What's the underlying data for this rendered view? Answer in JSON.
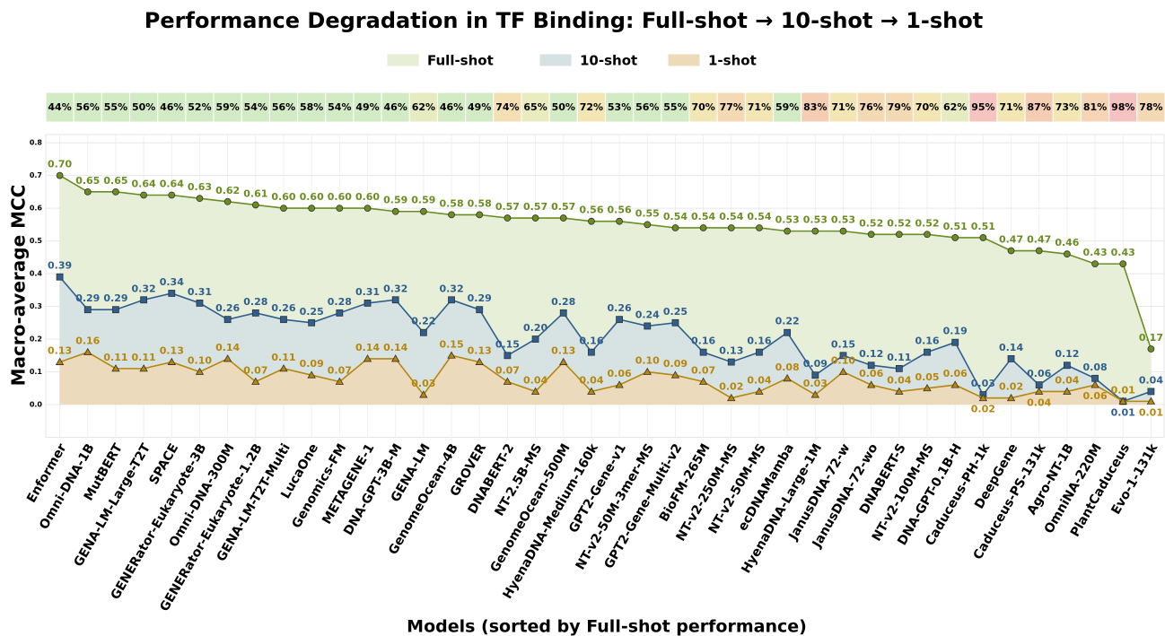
{
  "chart_data": {
    "type": "line",
    "title": "Performance Degradation in TF Binding: Full-shot → 10-shot → 1-shot",
    "x_label": "Models (sorted by Full-shot performance)",
    "y_label": "Macro-average MCC",
    "categories": [
      "Enformer",
      "Omni-DNA-1B",
      "MutBERT",
      "GENA-LM-Large-T2T",
      "SPACE",
      "GENERator-Eukaryote-3B",
      "Omni-DNA-300M",
      "GENERator-Eukaryote-1.2B",
      "GENA-LM-T2T-Multi",
      "LucaOne",
      "Genomics-FM",
      "METAGENE-1",
      "DNA-GPT-3B-M",
      "GENA-LM",
      "GenomeOcean-4B",
      "GROVER",
      "DNABERT-2",
      "NT-2.5B-MS",
      "GenomeOcean-500M",
      "HyenaDNA-Medium-160k",
      "GPT2-Gene-v1",
      "NT-v2-50M-3mer-MS",
      "GPT2-Gene-Multi-v2",
      "BioFM-265M",
      "NT-v2-250M-MS",
      "NT-v2-50M-MS",
      "ecDNAMamba",
      "HyenaDNA-Large-1M",
      "JanusDNA-72-w",
      "JanusDNA-72-wo",
      "DNABERT-S",
      "NT-v2-100M-MS",
      "DNA-GPT-0.1B-H",
      "Caduceus-PH-1k",
      "DeepGene",
      "Caduceus-PS-131k",
      "Agro-NT-1B",
      "OmniNA-220M",
      "PlantCaduceus",
      "Evo-1-131k"
    ],
    "series": [
      {
        "name": "Full-shot",
        "color": "#6b8e23",
        "fill": "#e6eed6",
        "marker": "circle",
        "values": [
          0.7,
          0.65,
          0.65,
          0.64,
          0.64,
          0.63,
          0.62,
          0.61,
          0.6,
          0.6,
          0.6,
          0.6,
          0.59,
          0.59,
          0.58,
          0.58,
          0.57,
          0.57,
          0.57,
          0.56,
          0.56,
          0.55,
          0.54,
          0.54,
          0.54,
          0.54,
          0.53,
          0.53,
          0.53,
          0.52,
          0.52,
          0.52,
          0.51,
          0.51,
          0.47,
          0.47,
          0.46,
          0.43,
          0.43,
          0.17
        ],
        "value_labels": [
          "0.70",
          "0.65",
          "0.65",
          "0.64",
          "0.64",
          "0.63",
          "0.62",
          "0.61",
          "0.60",
          "0.60",
          "0.60",
          "0.60",
          "0.59",
          "0.59",
          "0.58",
          "0.58",
          "0.57",
          "0.57",
          "0.57",
          "0.56",
          "0.56",
          "0.55",
          "0.54",
          "0.54",
          "0.54",
          "0.54",
          "0.53",
          "0.53",
          "0.53",
          "0.52",
          "0.52",
          "0.52",
          "0.51",
          "0.51",
          "0.47",
          "0.47",
          "0.46",
          "0.43",
          "0.43",
          "0.17"
        ]
      },
      {
        "name": "10-shot",
        "color": "#2f5f8f",
        "fill": "#d5e1e3",
        "marker": "square",
        "values": [
          0.39,
          0.29,
          0.29,
          0.32,
          0.34,
          0.31,
          0.26,
          0.28,
          0.26,
          0.25,
          0.28,
          0.31,
          0.32,
          0.22,
          0.32,
          0.29,
          0.15,
          0.2,
          0.28,
          0.16,
          0.26,
          0.24,
          0.25,
          0.16,
          0.13,
          0.16,
          0.22,
          0.09,
          0.15,
          0.12,
          0.11,
          0.16,
          0.19,
          0.03,
          0.14,
          0.06,
          0.12,
          0.08,
          0.01,
          0.04
        ],
        "value_labels": [
          "0.39",
          "0.29",
          "0.29",
          "0.32",
          "0.34",
          "0.31",
          "0.26",
          "0.28",
          "0.26",
          "0.25",
          "0.28",
          "0.31",
          "0.32",
          "0.22",
          "0.32",
          "0.29",
          "0.15",
          "0.20",
          "0.28",
          "0.16",
          "0.26",
          "0.24",
          "0.25",
          "0.16",
          "0.13",
          "0.16",
          "0.22",
          "0.09",
          "0.15",
          "0.12",
          "0.11",
          "0.16",
          "0.19",
          "0.03",
          "0.14",
          "0.06",
          "0.12",
          "0.08",
          "0.01",
          "0.04"
        ]
      },
      {
        "name": "1-shot",
        "color": "#b8860b",
        "fill": "#ecdab9",
        "marker": "triangle",
        "values": [
          0.13,
          0.16,
          0.11,
          0.11,
          0.13,
          0.1,
          0.14,
          0.07,
          0.11,
          0.09,
          0.07,
          0.14,
          0.14,
          0.03,
          0.15,
          0.13,
          0.07,
          0.04,
          0.13,
          0.04,
          0.06,
          0.1,
          0.09,
          0.07,
          0.02,
          0.04,
          0.08,
          0.03,
          0.1,
          0.06,
          0.04,
          0.05,
          0.06,
          0.02,
          0.02,
          0.04,
          0.04,
          0.06,
          0.01,
          0.01
        ],
        "value_labels": [
          "0.13",
          "0.16",
          "0.11",
          "0.11",
          "0.13",
          "0.10",
          "0.14",
          "0.07",
          "0.11",
          "0.09",
          "0.07",
          "0.14",
          "0.14",
          "0.03",
          "0.15",
          "0.13",
          "0.07",
          "0.04",
          "0.13",
          "0.04",
          "0.06",
          "0.10",
          "0.09",
          "0.07",
          "0.02",
          "0.04",
          "0.08",
          "0.03",
          "0.10",
          "0.06",
          "0.04",
          "0.05",
          "0.06",
          "0.02",
          "0.02",
          "0.04",
          "0.04",
          "0.06",
          "0.01",
          "0.01"
        ]
      }
    ],
    "degradation": {
      "values": [
        44,
        56,
        55,
        50,
        46,
        52,
        59,
        54,
        56,
        58,
        54,
        49,
        46,
        62,
        46,
        49,
        74,
        65,
        50,
        72,
        53,
        56,
        55,
        70,
        77,
        71,
        59,
        83,
        71,
        76,
        79,
        70,
        62,
        95,
        71,
        87,
        73,
        81,
        98,
        78
      ],
      "value_labels": [
        "44%",
        "56%",
        "55%",
        "50%",
        "46%",
        "52%",
        "59%",
        "54%",
        "56%",
        "58%",
        "54%",
        "49%",
        "46%",
        "62%",
        "46%",
        "49%",
        "74%",
        "65%",
        "50%",
        "72%",
        "53%",
        "56%",
        "55%",
        "70%",
        "77%",
        "71%",
        "59%",
        "83%",
        "71%",
        "76%",
        "79%",
        "70%",
        "62%",
        "95%",
        "71%",
        "87%",
        "73%",
        "81%",
        "98%",
        "78%"
      ],
      "colors": [
        "#d3ebc4",
        "#d3ebc4",
        "#d3ebc4",
        "#d3ebc4",
        "#d3ebc4",
        "#d3ebc4",
        "#d3ebc4",
        "#d3ebc4",
        "#d3ebc4",
        "#d3ebc4",
        "#d3ebc4",
        "#d3ebc4",
        "#d3ebc4",
        "#e6ecc0",
        "#d3ebc4",
        "#d3ebc4",
        "#f4dfb4",
        "#e8ecbe",
        "#d3ebc4",
        "#f2e6b4",
        "#d3ebc4",
        "#d3ebc4",
        "#d3ebc4",
        "#f2e6b4",
        "#f4dab4",
        "#f2e6b4",
        "#d3ebc4",
        "#f5cdb3",
        "#f2e6b4",
        "#f4dab4",
        "#f4dab4",
        "#f2e6b4",
        "#e6ecc0",
        "#f5c4c0",
        "#f2e6b4",
        "#f5cdb3",
        "#f2e6b4",
        "#f4d4b4",
        "#f5c2c2",
        "#f4dab4"
      ]
    },
    "ylim": [
      -0.1,
      0.825
    ],
    "yticks": [
      {
        "value": 0,
        "label": "0.0"
      },
      0.1,
      0.2,
      0.3,
      0.4,
      0.5,
      0.6,
      0.7,
      0.8
    ],
    "grid": true
  }
}
